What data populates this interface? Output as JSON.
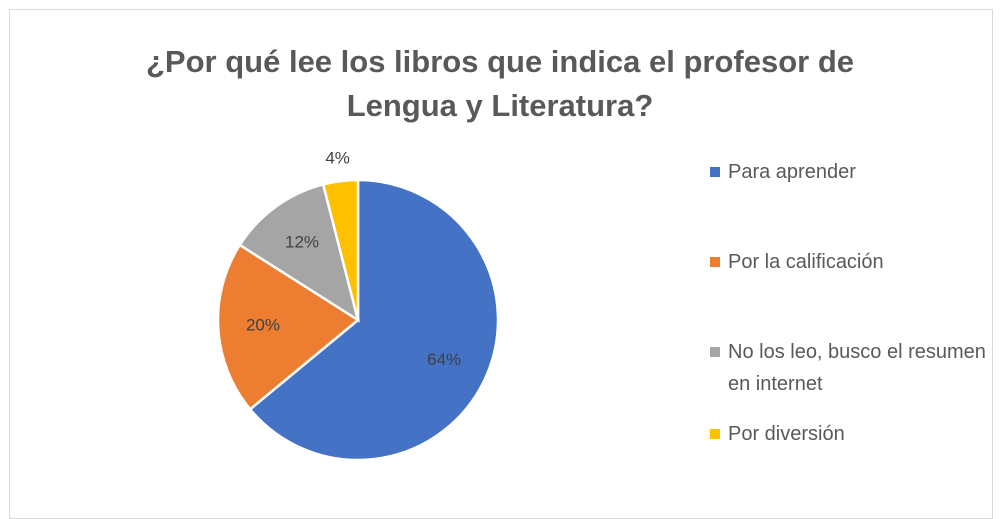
{
  "chart_data": {
    "type": "pie",
    "title": "¿Por qué lee los libros que indica el profesor de Lengua y Literatura?",
    "categories": [
      "Para aprender",
      "Por la calificación",
      "No los leo, busco el resumen en internet",
      "Por diversión"
    ],
    "values": [
      64,
      20,
      12,
      4
    ],
    "value_labels": [
      "64%",
      "20%",
      "12%",
      "4%"
    ],
    "colors": [
      "#4472c4",
      "#ed7d31",
      "#a5a5a5",
      "#ffc000"
    ],
    "legend": "right"
  }
}
